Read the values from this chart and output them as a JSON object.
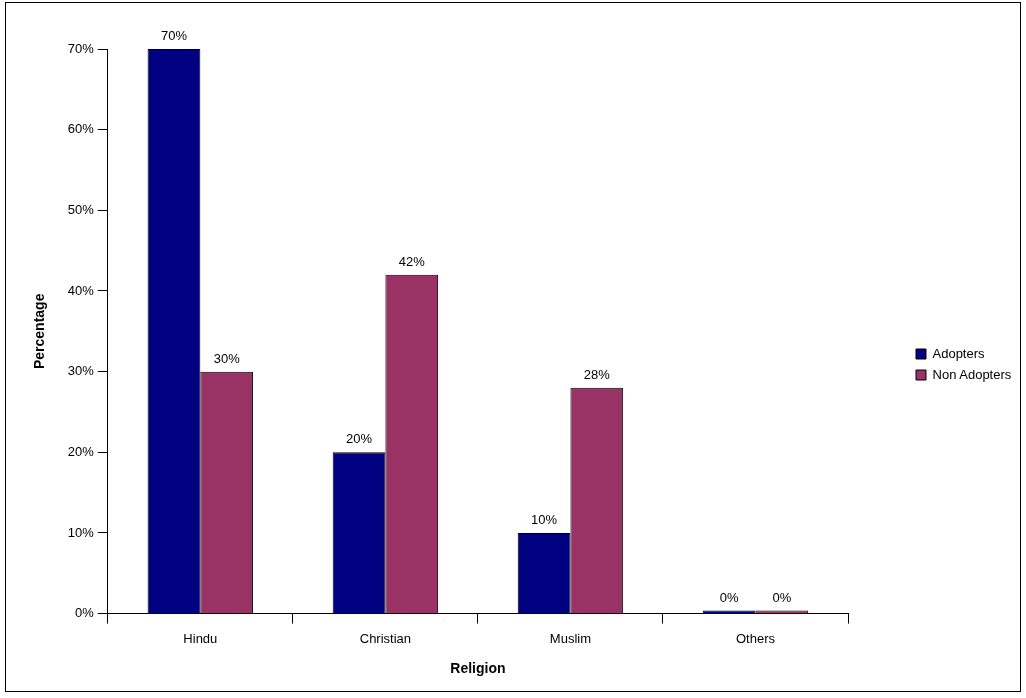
{
  "chart_data": {
    "type": "bar",
    "xlabel": "Religion",
    "ylabel": "Percentage",
    "categories": [
      "Hindu",
      "Christian",
      "Muslim",
      "Others"
    ],
    "series": [
      {
        "name": "Adopters",
        "color": "#000080",
        "values": [
          70,
          20,
          10,
          0
        ],
        "value_labels": [
          "70%",
          "20%",
          "10%",
          "0%"
        ]
      },
      {
        "name": "Non Adopters",
        "color": "#993366",
        "values": [
          30,
          42,
          28,
          0
        ],
        "value_labels": [
          "30%",
          "42%",
          "28%",
          "0%"
        ]
      }
    ],
    "ylim": [
      0,
      70
    ],
    "yticks": [
      {
        "value": 0,
        "label": "0%"
      },
      {
        "value": 10,
        "label": "10%"
      },
      {
        "value": 20,
        "label": "20%"
      },
      {
        "value": 30,
        "label": "30%"
      },
      {
        "value": 40,
        "label": "40%"
      },
      {
        "value": 50,
        "label": "50%"
      },
      {
        "value": 60,
        "label": "60%"
      },
      {
        "value": 70,
        "label": "70%"
      }
    ],
    "legend": "right"
  }
}
